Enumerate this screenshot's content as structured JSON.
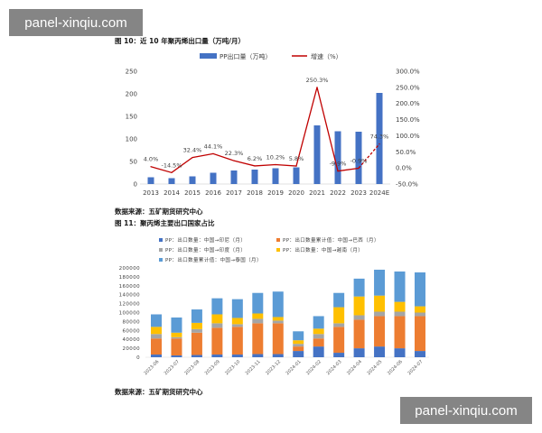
{
  "watermarks": {
    "top_left": "panel-xinqiu.com",
    "bottom_right": "panel-xinqiu.com"
  },
  "figure10": {
    "title": "图 10：近 10 年聚丙烯出口量（万吨/月）",
    "source": "数据来源：五矿期货研究中心"
  },
  "figure11": {
    "title": "图 11：聚丙烯主要出口国家占比",
    "source": "数据来源：五矿期货研究中心"
  },
  "chart_data": [
    {
      "type": "bar",
      "categories": [
        "2013",
        "2014",
        "2015",
        "2016",
        "2017",
        "2018",
        "2019",
        "2020",
        "2021",
        "2022",
        "2023",
        "2024E"
      ],
      "series": [
        {
          "name": "PP出口量（万吨）",
          "type": "bar",
          "color": "#4472C4",
          "values": [
            15,
            13,
            17,
            25,
            30,
            32,
            35,
            37,
            130,
            117,
            116,
            202
          ]
        },
        {
          "name": "增速（%）",
          "type": "line",
          "color": "#C00000",
          "values": [
            4.0,
            -14.5,
            32.4,
            44.1,
            22.3,
            6.2,
            10.2,
            5.8,
            250.3,
            -9.9,
            -0.9,
            74.3
          ],
          "labels": [
            "4.0%",
            "-14.5%",
            "32.4%",
            "44.1%",
            "22.3%",
            "6.2%",
            "10.2%",
            "5.8%",
            "250.3%",
            "-9.9%",
            "-0.9%",
            "74.3%"
          ]
        }
      ],
      "ylim": [
        0,
        250
      ],
      "yticks": [
        "0",
        "50",
        "100",
        "150",
        "200",
        "250"
      ],
      "y2lim": [
        -50,
        300
      ],
      "y2ticks": [
        "-50.0%",
        "0.0%",
        "50.0%",
        "100.0%",
        "150.0%",
        "200.0%",
        "250.0%",
        "300.0%"
      ],
      "legend": "top",
      "grid": false
    },
    {
      "type": "bar",
      "stacked": true,
      "categories": [
        "2023-06",
        "2023-07",
        "2023-08",
        "2023-09",
        "2023-10",
        "2023-11",
        "2023-12",
        "2024-01",
        "2024-02",
        "2024-03",
        "2024-04",
        "2024-05",
        "2024-06",
        "2024-07"
      ],
      "series": [
        {
          "name": "PP：出口数量：中国→印尼（月）",
          "color": "#4472C4",
          "values": [
            6000,
            4000,
            5000,
            6000,
            6000,
            7000,
            7000,
            14000,
            24000,
            10000,
            20000,
            24000,
            20000,
            14000
          ]
        },
        {
          "name": "PP：出口数量累计值：中国→巴西（月）",
          "color": "#ED7D31",
          "values": [
            36000,
            38000,
            50000,
            60000,
            62000,
            69000,
            69000,
            10000,
            18000,
            58000,
            64000,
            68000,
            72000,
            78000
          ]
        },
        {
          "name": "PP：出口数量：中国→印度（月）",
          "color": "#A5A5A5",
          "values": [
            10000,
            3000,
            8000,
            10000,
            6000,
            10000,
            6000,
            6000,
            10000,
            8000,
            10000,
            10000,
            10000,
            8000
          ]
        },
        {
          "name": "PP：出口数量：中国→越南（月）",
          "color": "#FFC000",
          "values": [
            16000,
            10000,
            14000,
            20000,
            14000,
            12000,
            8000,
            8000,
            12000,
            36000,
            42000,
            36000,
            22000,
            14000
          ]
        },
        {
          "name": "PP：出口数量累计值：中国→泰国（月）",
          "color": "#5B9BD5",
          "values": [
            28000,
            34000,
            30000,
            36000,
            42000,
            46000,
            57000,
            20000,
            28000,
            32000,
            40000,
            58000,
            68000,
            76000
          ]
        }
      ],
      "ylim": [
        0,
        200000
      ],
      "yticks": [
        "0",
        "20000",
        "40000",
        "60000",
        "80000",
        "100000",
        "120000",
        "140000",
        "160000",
        "180000",
        "200000"
      ],
      "legend": "top",
      "grid": false
    }
  ]
}
